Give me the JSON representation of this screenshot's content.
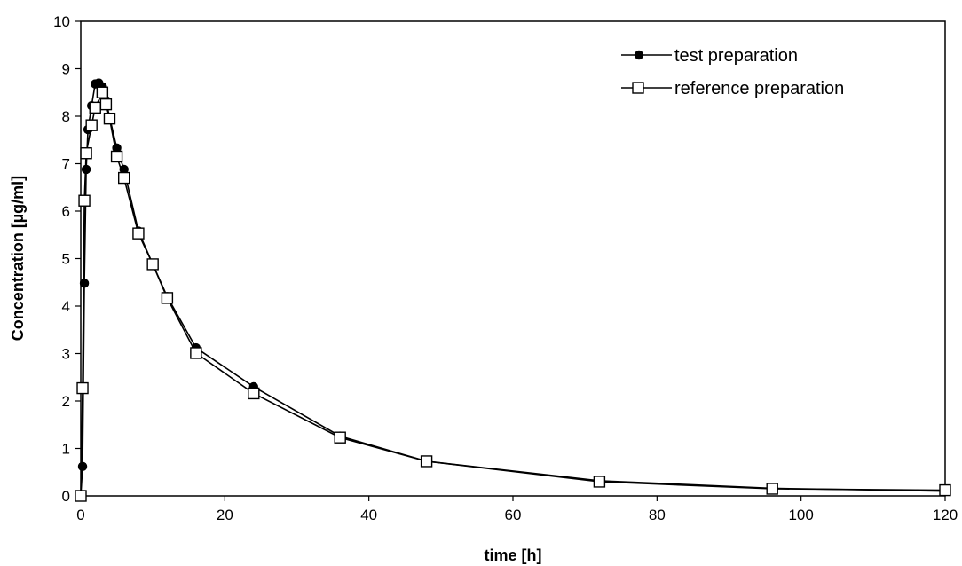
{
  "chart_data": {
    "type": "line",
    "title": "",
    "xlabel": "time [h]",
    "ylabel": "Concentration [µg/ml]",
    "xlim": [
      0,
      120
    ],
    "ylim": [
      0,
      10
    ],
    "x_ticks": [
      0,
      20,
      40,
      60,
      80,
      100,
      120
    ],
    "y_ticks": [
      0,
      1,
      2,
      3,
      4,
      5,
      6,
      7,
      8,
      9,
      10
    ],
    "grid": false,
    "legend_position": "top-right",
    "series": [
      {
        "name": "test preparation",
        "marker": "filled-circle",
        "color": "#000000",
        "x": [
          0,
          0.25,
          0.5,
          0.75,
          1,
          1.5,
          2,
          2.5,
          3,
          3.5,
          4,
          5,
          6,
          8,
          10,
          12,
          16,
          24,
          36,
          48,
          72,
          96,
          120
        ],
        "y": [
          0,
          0.62,
          4.48,
          6.88,
          7.72,
          8.22,
          8.68,
          8.7,
          8.62,
          8.33,
          7.98,
          7.33,
          6.88,
          5.58,
          4.88,
          4.2,
          3.12,
          2.3,
          1.26,
          0.73,
          0.32,
          0.16,
          0.1
        ]
      },
      {
        "name": "reference preparation",
        "marker": "open-square",
        "color": "#000000",
        "x": [
          0,
          0.25,
          0.5,
          0.75,
          1.5,
          2,
          3,
          3.5,
          4,
          5,
          6,
          8,
          10,
          12,
          16,
          24,
          36,
          48,
          72,
          96,
          120
        ],
        "y": [
          0,
          2.27,
          6.22,
          7.22,
          7.81,
          8.18,
          8.5,
          8.25,
          7.95,
          7.15,
          6.7,
          5.53,
          4.88,
          4.17,
          3.01,
          2.16,
          1.23,
          0.73,
          0.3,
          0.15,
          0.12
        ]
      }
    ]
  }
}
